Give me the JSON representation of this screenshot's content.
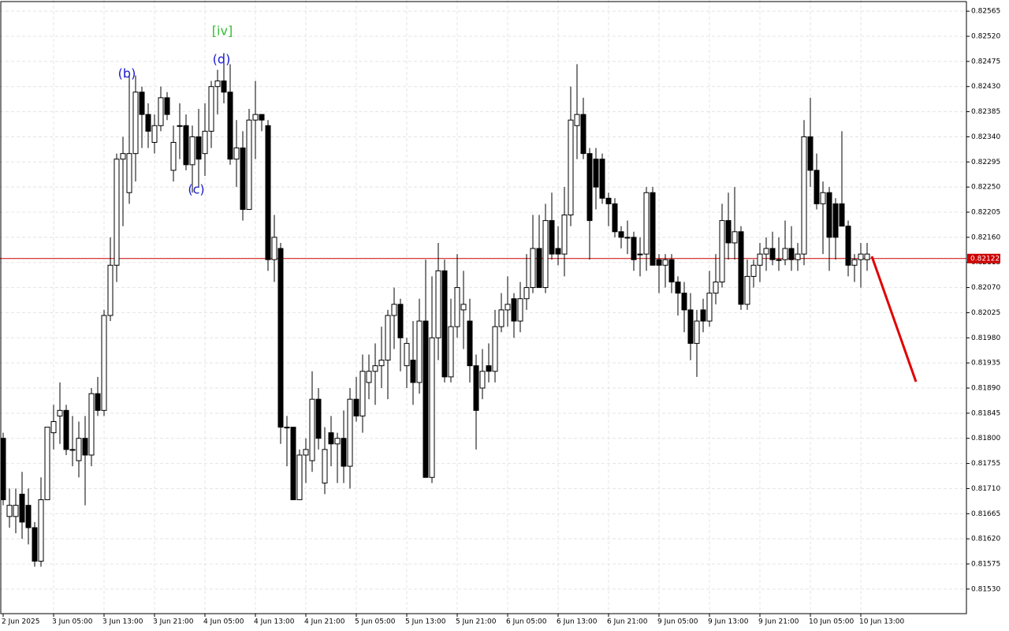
{
  "chart_data": {
    "type": "candlestick",
    "x_labels": [
      "2 Jun 2025",
      "3 Jun 05:00",
      "3 Jun 13:00",
      "3 Jun 21:00",
      "4 Jun 05:00",
      "4 Jun 13:00",
      "4 Jun 21:00",
      "5 Jun 05:00",
      "5 Jun 13:00",
      "5 Jun 21:00",
      "6 Jun 05:00",
      "6 Jun 13:00",
      "6 Jun 21:00",
      "9 Jun 05:00",
      "9 Jun 13:00",
      "9 Jun 21:00",
      "10 Jun 05:00",
      "10 Jun 13:00"
    ],
    "open": [
      0.818,
      0.8166,
      0.8166,
      0.817,
      0.8168,
      0.8164,
      0.8158,
      0.8169,
      0.8181,
      0.8184,
      0.8185,
      0.8178,
      0.8176,
      0.818,
      0.8177,
      0.8188,
      0.8185,
      0.8202,
      0.8211,
      0.823,
      0.8224,
      0.8231,
      0.8242,
      0.8238,
      0.8233,
      0.8236,
      0.8241,
      0.8228,
      0.8236,
      0.8236,
      0.8229,
      0.8234,
      0.8231,
      0.8235,
      0.8243,
      0.8244,
      0.8242,
      0.823,
      0.8232,
      0.8221,
      0.8237,
      0.8238,
      0.8236,
      0.8212,
      0.8214,
      0.8182,
      0.8182,
      0.8169,
      0.8177,
      0.8176,
      0.8187,
      0.8172,
      0.8181,
      0.8179,
      0.818,
      0.8175,
      0.8187,
      0.8184,
      0.819,
      0.8192,
      0.8193,
      0.8194,
      0.8202,
      0.8204,
      0.8193,
      0.8194,
      0.819,
      0.8201,
      0.8173,
      0.8198,
      0.821,
      0.8191,
      0.82,
      0.8203,
      0.8201,
      0.8193,
      0.8189,
      0.8193,
      0.8192,
      0.82,
      0.8203,
      0.8205,
      0.8201,
      0.8205,
      0.8207,
      0.8214,
      0.8207,
      0.8219,
      0.8214,
      0.8213,
      0.822,
      0.8236,
      0.8238,
      0.8231,
      0.823,
      0.823,
      0.8223,
      0.8222,
      0.8217,
      0.8216,
      0.8216,
      0.8213,
      0.8213,
      0.8224,
      0.8212,
      0.8211,
      0.8212,
      0.8208,
      0.8206,
      0.8203,
      0.8197,
      0.8203,
      0.8201,
      0.8206,
      0.8208,
      0.8219,
      0.8215,
      0.8217,
      0.8204,
      0.8209,
      0.8211,
      0.8213,
      0.8214,
      0.8212,
      0.8212,
      0.8214,
      0.8212,
      0.8213,
      0.8234,
      0.8228,
      0.8222,
      0.8224,
      0.8222,
      0.8222,
      0.8218,
      0.8211,
      0.8212,
      0.8212
    ],
    "high": [
      0.8181,
      0.8171,
      0.8171,
      0.8174,
      0.8171,
      0.8165,
      0.8173,
      0.8182,
      0.8186,
      0.819,
      0.8186,
      0.8184,
      0.8183,
      0.8184,
      0.8189,
      0.8191,
      0.8203,
      0.8216,
      0.8231,
      0.8234,
      0.8245,
      0.8245,
      0.8243,
      0.824,
      0.8238,
      0.8243,
      0.8242,
      0.8236,
      0.824,
      0.8238,
      0.8236,
      0.8239,
      0.824,
      0.8244,
      0.8246,
      0.8249,
      0.8247,
      0.8237,
      0.8235,
      0.8239,
      0.8244,
      0.8238,
      0.8237,
      0.822,
      0.8215,
      0.8184,
      0.8182,
      0.8178,
      0.818,
      0.8192,
      0.8189,
      0.8182,
      0.8184,
      0.8181,
      0.8185,
      0.8189,
      0.8191,
      0.8195,
      0.8195,
      0.8197,
      0.82,
      0.8203,
      0.8207,
      0.8205,
      0.8198,
      0.8201,
      0.8205,
      0.8212,
      0.8209,
      0.8215,
      0.8212,
      0.8205,
      0.8213,
      0.821,
      0.8205,
      0.8195,
      0.8196,
      0.8197,
      0.8203,
      0.8206,
      0.8209,
      0.8206,
      0.8208,
      0.8213,
      0.822,
      0.822,
      0.8222,
      0.8224,
      0.8218,
      0.8225,
      0.8243,
      0.8247,
      0.8241,
      0.8232,
      0.8232,
      0.8231,
      0.8224,
      0.8223,
      0.8218,
      0.8219,
      0.8217,
      0.8216,
      0.8225,
      0.8225,
      0.8213,
      0.8213,
      0.8213,
      0.8209,
      0.8208,
      0.8206,
      0.8203,
      0.8205,
      0.821,
      0.8213,
      0.8222,
      0.8224,
      0.8225,
      0.8218,
      0.8212,
      0.8212,
      0.8215,
      0.8216,
      0.8217,
      0.8216,
      0.8219,
      0.8218,
      0.8215,
      0.8237,
      0.8241,
      0.8231,
      0.8226,
      0.8225,
      0.8223,
      0.8235,
      0.8219,
      0.8213,
      0.8215,
      0.8215
    ],
    "low": [
      0.8168,
      0.8164,
      0.8163,
      0.8162,
      0.8161,
      0.8157,
      0.8157,
      0.8169,
      0.8178,
      0.8179,
      0.8177,
      0.8175,
      0.8173,
      0.8168,
      0.8175,
      0.8184,
      0.8184,
      0.8201,
      0.8208,
      0.8218,
      0.8222,
      0.8226,
      0.8232,
      0.8232,
      0.8231,
      0.8235,
      0.8237,
      0.8226,
      0.823,
      0.8228,
      0.8224,
      0.8225,
      0.8227,
      0.8232,
      0.8238,
      0.824,
      0.8229,
      0.8225,
      0.8219,
      0.8221,
      0.823,
      0.8235,
      0.821,
      0.8208,
      0.8179,
      0.8175,
      0.8169,
      0.8169,
      0.8172,
      0.8174,
      0.8178,
      0.817,
      0.8175,
      0.8172,
      0.8172,
      0.8171,
      0.8183,
      0.8181,
      0.8187,
      0.8186,
      0.8189,
      0.8187,
      0.8196,
      0.8192,
      0.8189,
      0.8186,
      0.8188,
      0.8173,
      0.8172,
      0.8194,
      0.819,
      0.819,
      0.8198,
      0.8196,
      0.819,
      0.8178,
      0.8187,
      0.819,
      0.819,
      0.8199,
      0.82,
      0.8198,
      0.8199,
      0.8203,
      0.8206,
      0.8207,
      0.8206,
      0.8212,
      0.8211,
      0.8209,
      0.8218,
      0.823,
      0.823,
      0.8212,
      0.8221,
      0.8222,
      0.8218,
      0.8216,
      0.8214,
      0.8213,
      0.821,
      0.8209,
      0.821,
      0.8211,
      0.8206,
      0.8207,
      0.8206,
      0.8202,
      0.8199,
      0.8194,
      0.8191,
      0.8199,
      0.82,
      0.8204,
      0.8207,
      0.8212,
      0.8212,
      0.8203,
      0.8203,
      0.8207,
      0.8208,
      0.821,
      0.8211,
      0.821,
      0.8211,
      0.821,
      0.821,
      0.8211,
      0.8225,
      0.8221,
      0.8213,
      0.821,
      0.8212,
      0.8218,
      0.8209,
      0.8208,
      0.8207,
      0.821
    ],
    "close": [
      0.8169,
      0.8168,
      0.8168,
      0.8165,
      0.8164,
      0.8158,
      0.8169,
      0.8182,
      0.8183,
      0.8185,
      0.8178,
      0.8178,
      0.818,
      0.8177,
      0.8188,
      0.8185,
      0.8202,
      0.8211,
      0.823,
      0.8231,
      0.8231,
      0.8242,
      0.8238,
      0.8235,
      0.8236,
      0.8241,
      0.8238,
      0.8233,
      0.8236,
      0.8229,
      0.8234,
      0.823,
      0.8235,
      0.8243,
      0.8244,
      0.8242,
      0.823,
      0.8232,
      0.8221,
      0.8237,
      0.8238,
      0.8237,
      0.8212,
      0.8216,
      0.8182,
      0.8182,
      0.8169,
      0.8177,
      0.8178,
      0.8187,
      0.818,
      0.8178,
      0.8179,
      0.818,
      0.8175,
      0.8187,
      0.8184,
      0.8192,
      0.8192,
      0.8193,
      0.8194,
      0.8202,
      0.8204,
      0.8198,
      0.8197,
      0.819,
      0.8201,
      0.8173,
      0.8198,
      0.821,
      0.8191,
      0.82,
      0.8207,
      0.8204,
      0.8193,
      0.8185,
      0.8192,
      0.8192,
      0.82,
      0.8203,
      0.8204,
      0.8201,
      0.8205,
      0.8207,
      0.8214,
      0.8207,
      0.8219,
      0.8213,
      0.8213,
      0.822,
      0.8237,
      0.8238,
      0.8231,
      0.8219,
      0.8225,
      0.8223,
      0.8222,
      0.8217,
      0.8216,
      0.8216,
      0.8212,
      0.8213,
      0.8224,
      0.8211,
      0.8211,
      0.8212,
      0.8208,
      0.8206,
      0.8203,
      0.8197,
      0.8201,
      0.8201,
      0.8206,
      0.8208,
      0.8219,
      0.8215,
      0.8217,
      0.8204,
      0.8209,
      0.8211,
      0.8213,
      0.8214,
      0.8212,
      0.8212,
      0.8214,
      0.8212,
      0.8213,
      0.8234,
      0.8228,
      0.8222,
      0.8224,
      0.8216,
      0.8216,
      0.8218,
      0.8211,
      0.8212,
      0.8213,
      0.8213
    ],
    "bull_color": "#ffffff",
    "bear_color": "#000000",
    "ylim": [
      0.81486,
      0.82585
    ],
    "yticks": [
      {
        "value": 0.8153,
        "label": "0.81530"
      },
      {
        "value": 0.81575,
        "label": "0.81575"
      },
      {
        "value": 0.8162,
        "label": "0.81620"
      },
      {
        "value": 0.81665,
        "label": "0.81665"
      },
      {
        "value": 0.8171,
        "label": "0.81710"
      },
      {
        "value": 0.81755,
        "label": "0.81755"
      },
      {
        "value": 0.818,
        "label": "0.81800"
      },
      {
        "value": 0.81845,
        "label": "0.81845"
      },
      {
        "value": 0.8189,
        "label": "0.81890"
      },
      {
        "value": 0.81935,
        "label": "0.81935"
      },
      {
        "value": 0.8198,
        "label": "0.81980"
      },
      {
        "value": 0.82025,
        "label": "0.82025"
      },
      {
        "value": 0.8207,
        "label": "0.82070"
      },
      {
        "value": 0.82115,
        "label": "0.82115"
      },
      {
        "value": 0.8216,
        "label": "0.82160"
      },
      {
        "value": 0.82205,
        "label": "0.82205"
      },
      {
        "value": 0.8225,
        "label": "0.82250"
      },
      {
        "value": 0.82295,
        "label": "0.82295"
      },
      {
        "value": 0.8234,
        "label": "0.82340"
      },
      {
        "value": 0.82385,
        "label": "0.82385"
      },
      {
        "value": 0.8243,
        "label": "0.82430"
      },
      {
        "value": 0.82475,
        "label": "0.82475"
      },
      {
        "value": 0.8252,
        "label": "0.82520"
      },
      {
        "value": 0.82565,
        "label": "0.82565"
      }
    ],
    "current_price": {
      "value": 0.82122,
      "label": "0.82122",
      "color": "#cc0000"
    },
    "annotations": [
      {
        "text": "[iv]",
        "color": "#33bb33"
      },
      {
        "text": "(b)",
        "color": "#1a1acc"
      },
      {
        "text": "(c)",
        "color": "#1a1acc"
      },
      {
        "text": "(d)",
        "color": "#1a1acc"
      }
    ],
    "grid": true
  }
}
